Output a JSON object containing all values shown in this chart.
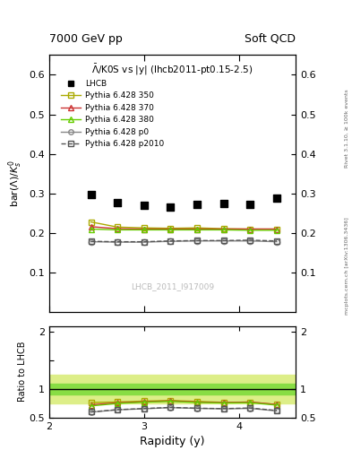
{
  "title_top": "7000 GeV pp",
  "title_right": "Soft QCD",
  "plot_title": "$\\bar{\\Lambda}$/K0S vs |y| (lhcb2011-pt0.15-2.5)",
  "ylabel_main": "bar($\\Lambda$)/$K^0_s$",
  "ylabel_ratio": "Ratio to LHCB",
  "xlabel": "Rapidity (y)",
  "watermark": "LHCB_2011_I917009",
  "right_label_top": "Rivet 3.1.10, ≥ 100k events",
  "right_label_bot": "mcplots.cern.ch [arXiv:1306.3436]",
  "lhcb_x": [
    2.44,
    2.72,
    3.0,
    3.28,
    3.56,
    3.84,
    4.12,
    4.4
  ],
  "lhcb_y": [
    0.298,
    0.278,
    0.27,
    0.265,
    0.272,
    0.275,
    0.272,
    0.288
  ],
  "py350_x": [
    2.44,
    2.72,
    3.0,
    3.28,
    3.56,
    3.84,
    4.12,
    4.4
  ],
  "py350_y": [
    0.228,
    0.215,
    0.213,
    0.212,
    0.213,
    0.211,
    0.21,
    0.21
  ],
  "py370_x": [
    2.44,
    2.72,
    3.0,
    3.28,
    3.56,
    3.84,
    4.12,
    4.4
  ],
  "py370_y": [
    0.216,
    0.211,
    0.21,
    0.21,
    0.21,
    0.21,
    0.21,
    0.21
  ],
  "py380_x": [
    2.44,
    2.72,
    3.0,
    3.28,
    3.56,
    3.84,
    4.12,
    4.4
  ],
  "py380_y": [
    0.21,
    0.208,
    0.208,
    0.208,
    0.208,
    0.208,
    0.207,
    0.207
  ],
  "pyp0_x": [
    2.44,
    2.72,
    3.0,
    3.28,
    3.56,
    3.84,
    4.12,
    4.4
  ],
  "pyp0_y": [
    0.178,
    0.177,
    0.177,
    0.179,
    0.18,
    0.18,
    0.18,
    0.178
  ],
  "pyp2010_x": [
    2.44,
    2.72,
    3.0,
    3.28,
    3.56,
    3.84,
    4.12,
    4.4
  ],
  "pyp2010_y": [
    0.179,
    0.178,
    0.178,
    0.18,
    0.181,
    0.181,
    0.182,
    0.18
  ],
  "color_350": "#aaaa00",
  "color_370": "#cc3333",
  "color_380": "#66cc00",
  "color_p0": "#888888",
  "color_p2010": "#555555",
  "xlim": [
    2.0,
    4.6
  ],
  "ylim_main": [
    0.0,
    0.65
  ],
  "ylim_ratio": [
    0.5,
    2.1
  ],
  "ratio_band_inner_color": "#88dd44",
  "ratio_band_outer_color": "#ddee88",
  "ratio_band_inner": 0.1,
  "ratio_band_outer": 0.25
}
